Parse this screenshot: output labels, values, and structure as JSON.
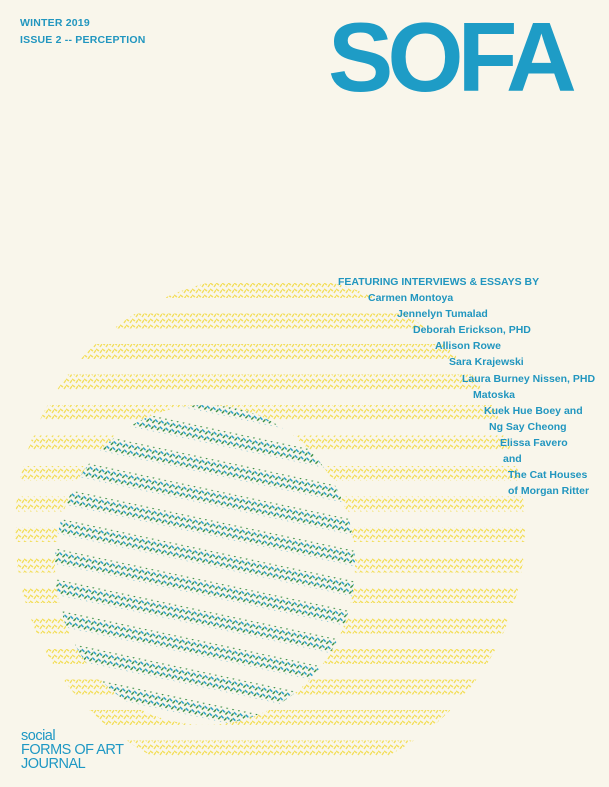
{
  "header": {
    "season": "WINTER 2019",
    "issue": "ISSUE 2 -- PERCEPTION"
  },
  "logo": {
    "text": "SOFA"
  },
  "contributors": {
    "heading": "FEATURING INTERVIEWS & ESSAYS BY",
    "names": [
      "Carmen Montoya",
      "Jennelyn Tumalad",
      "Deborah Erickson, PHD",
      "Allison Rowe",
      "Sara Krajewski",
      "Laura Burney Nissen, PHD",
      "Matoska",
      "Kuek Hue Boey and",
      "Ng Say Cheong",
      "Elissa Favero",
      "and",
      "The Cat Houses",
      "of Morgan Ritter"
    ]
  },
  "footer": {
    "line1": "social",
    "line2": "FORMS OF ART",
    "line3": "JOURNAL"
  },
  "colors": {
    "background": "#f9f6eb",
    "text": "#2196bf",
    "yellow": "#f3df5e",
    "blue": "#1e9cc6",
    "green": "#2f8a3c"
  }
}
